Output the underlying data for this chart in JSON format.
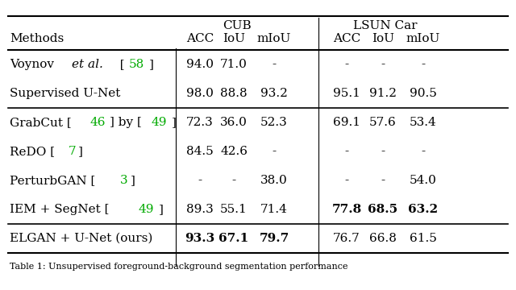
{
  "title_caption": "Table 1: Unsupervised foreground-background segmentation performance",
  "col_groups": [
    {
      "label": "CUB",
      "cols": [
        "ACC",
        "IoU",
        "mIoU"
      ]
    },
    {
      "label": "LSUN Car",
      "cols": [
        "ACC",
        "IoU",
        "mIoU"
      ]
    }
  ],
  "rows": [
    {
      "method": "Voynov $\\it{et\\ al.}$  [58]",
      "method_parts": [
        {
          "text": "Voynov ",
          "style": "normal"
        },
        {
          "text": "et al.",
          "style": "italic"
        },
        {
          "text": "  [",
          "style": "normal"
        },
        {
          "text": "58",
          "style": "green"
        },
        {
          "text": "]",
          "style": "normal"
        }
      ],
      "cub": [
        "94.0",
        "71.0",
        "-"
      ],
      "lsun": [
        "-",
        "-",
        "-"
      ],
      "bold_cub": [
        false,
        false,
        false
      ],
      "bold_lsun": [
        false,
        false,
        false
      ],
      "group": 1
    },
    {
      "method": "Supervised U-Net",
      "method_parts": [
        {
          "text": "Supervised U-Net",
          "style": "normal"
        }
      ],
      "cub": [
        "98.0",
        "88.8",
        "93.2"
      ],
      "lsun": [
        "95.1",
        "91.2",
        "90.5"
      ],
      "bold_cub": [
        false,
        false,
        false
      ],
      "bold_lsun": [
        false,
        false,
        false
      ],
      "group": 1
    },
    {
      "method": "GrabCut [46] by [49]",
      "method_parts": [
        {
          "text": "GrabCut [",
          "style": "normal"
        },
        {
          "text": "46",
          "style": "green"
        },
        {
          "text": "] by [",
          "style": "normal"
        },
        {
          "text": "49",
          "style": "green"
        },
        {
          "text": "]",
          "style": "normal"
        }
      ],
      "cub": [
        "72.3",
        "36.0",
        "52.3"
      ],
      "lsun": [
        "69.1",
        "57.6",
        "53.4"
      ],
      "bold_cub": [
        false,
        false,
        false
      ],
      "bold_lsun": [
        false,
        false,
        false
      ],
      "group": 2
    },
    {
      "method": "ReDO [7]",
      "method_parts": [
        {
          "text": "ReDO [",
          "style": "normal"
        },
        {
          "text": "7",
          "style": "green"
        },
        {
          "text": "]",
          "style": "normal"
        }
      ],
      "cub": [
        "84.5",
        "42.6",
        "-"
      ],
      "lsun": [
        "-",
        "-",
        "-"
      ],
      "bold_cub": [
        false,
        false,
        false
      ],
      "bold_lsun": [
        false,
        false,
        false
      ],
      "group": 2
    },
    {
      "method": "PerturbGAN [3]",
      "method_parts": [
        {
          "text": "PerturbGAN [",
          "style": "normal"
        },
        {
          "text": "3",
          "style": "green"
        },
        {
          "text": "]",
          "style": "normal"
        }
      ],
      "cub": [
        "-",
        "-",
        "38.0"
      ],
      "lsun": [
        "-",
        "-",
        "54.0"
      ],
      "bold_cub": [
        false,
        false,
        false
      ],
      "bold_lsun": [
        false,
        false,
        false
      ],
      "group": 2
    },
    {
      "method": "IEM + SegNet [49]",
      "method_parts": [
        {
          "text": "IEM + SegNet [",
          "style": "normal"
        },
        {
          "text": "49",
          "style": "green"
        },
        {
          "text": "]",
          "style": "normal"
        }
      ],
      "cub": [
        "89.3",
        "55.1",
        "71.4"
      ],
      "lsun": [
        "77.8",
        "68.5",
        "63.2"
      ],
      "bold_cub": [
        false,
        false,
        false
      ],
      "bold_lsun": [
        true,
        true,
        true
      ],
      "group": 2
    },
    {
      "method": "ELGAN + U-Net (ours)",
      "method_parts": [
        {
          "text": "ELGAN + U-Net (ours)",
          "style": "normal"
        }
      ],
      "cub": [
        "93.3",
        "67.1",
        "79.7"
      ],
      "lsun": [
        "76.7",
        "66.8",
        "61.5"
      ],
      "bold_cub": [
        true,
        true,
        true
      ],
      "bold_lsun": [
        false,
        false,
        false
      ],
      "group": 3
    }
  ],
  "background_color": "#ffffff",
  "text_color": "#000000",
  "green_color": "#00aa00",
  "font_size": 11,
  "header_font_size": 11
}
